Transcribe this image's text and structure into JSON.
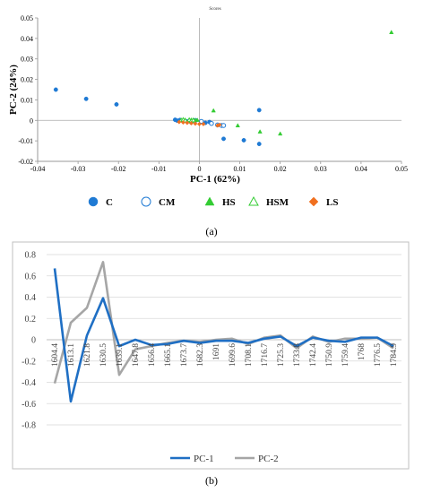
{
  "chart_data": [
    {
      "type": "scatter",
      "title": "Scores",
      "xlabel": "PC-1 (62%)",
      "ylabel": "PC-2 (24%)",
      "xlim": [
        -0.04,
        0.05
      ],
      "ylim": [
        -0.02,
        0.05
      ],
      "xticks": [
        "-0.04",
        "-0.03",
        "-0.02",
        "-0.01",
        "0",
        "0.01",
        "0.02",
        "0.03",
        "0.04",
        "0.05"
      ],
      "yticks": [
        "0.05",
        "0.04",
        "0.03",
        "0.02",
        "0.01",
        "0",
        "-0.01",
        "-0.02"
      ],
      "grid": false,
      "legend_position": "bottom",
      "series": [
        {
          "name": "C",
          "marker": "filled-circle",
          "color": "#1f7ad4",
          "points": [
            [
              -0.0355,
              0.015
            ],
            [
              -0.028,
              0.0105
            ],
            [
              -0.0205,
              0.0078
            ],
            [
              -0.006,
              0.0003
            ],
            [
              -0.0055,
              -0.0001
            ],
            [
              -0.0048,
              0.0002
            ],
            [
              -0.003,
              -0.0005
            ],
            [
              -0.002,
              -0.001
            ],
            [
              0.0015,
              -0.0012
            ],
            [
              0.0025,
              -0.0008
            ],
            [
              0.006,
              -0.009
            ],
            [
              0.011,
              -0.0097
            ],
            [
              0.0148,
              -0.0115
            ],
            [
              0.0148,
              0.005
            ]
          ]
        },
        {
          "name": "CM",
          "marker": "open-circle",
          "color": "#1f7ad4",
          "points": [
            [
              0.003,
              -0.0015
            ],
            [
              0.0045,
              -0.0022
            ],
            [
              0.0055,
              -0.0025
            ],
            [
              0.006,
              -0.0025
            ],
            [
              -0.001,
              0.0
            ],
            [
              0.0005,
              -0.0005
            ]
          ]
        },
        {
          "name": "HS",
          "marker": "filled-triangle",
          "color": "#33cc33",
          "points": [
            [
              0.0475,
              0.043
            ],
            [
              0.0035,
              0.0048
            ],
            [
              0.015,
              -0.0055
            ],
            [
              0.02,
              -0.0065
            ],
            [
              0.0095,
              -0.0025
            ],
            [
              -0.0035,
              0.0002
            ],
            [
              -0.002,
              0.0003
            ],
            [
              -0.001,
              0.0001
            ],
            [
              -0.0005,
              0.0002
            ]
          ]
        },
        {
          "name": "HSM",
          "marker": "open-triangle",
          "color": "#33cc33",
          "points": [
            [
              -0.0045,
              0.0
            ],
            [
              -0.004,
              0.0003
            ],
            [
              -0.0035,
              0.0
            ],
            [
              -0.0025,
              0.0002
            ],
            [
              -0.002,
              -0.0002
            ],
            [
              -0.0015,
              0.0001
            ]
          ]
        },
        {
          "name": "LS",
          "marker": "filled-diamond",
          "color": "#f07020",
          "points": [
            [
              -0.005,
              -0.0008
            ],
            [
              -0.004,
              -0.001
            ],
            [
              -0.003,
              -0.0012
            ],
            [
              -0.002,
              -0.0014
            ],
            [
              -0.001,
              -0.0016
            ],
            [
              0.0,
              -0.0018
            ],
            [
              0.001,
              -0.0018
            ],
            [
              0.0045,
              -0.0025
            ],
            [
              0.005,
              -0.0022
            ]
          ]
        }
      ]
    },
    {
      "type": "line",
      "title": "",
      "xlabel": "",
      "ylabel": "",
      "ylim": [
        -0.8,
        0.8
      ],
      "yticks": [
        "0.8",
        "0.6",
        "0.4",
        "0.2",
        "0",
        "-0.2",
        "-0.4",
        "-0.6",
        "-0.8"
      ],
      "grid": true,
      "legend_position": "bottom",
      "categories": [
        "1604.4",
        "1613.1",
        "1621.8",
        "1630.5",
        "1639.1",
        "1647.8",
        "1656.4",
        "1665.1",
        "1673.7",
        "1682.3",
        "1691",
        "1699.6",
        "1708.1",
        "1716.7",
        "1725.3",
        "1733.8",
        "1742.4",
        "1750.9",
        "1759.4",
        "1768",
        "1776.5",
        "1784.9"
      ],
      "series": [
        {
          "name": "PC-1",
          "color": "#1f6fc4",
          "values": [
            0.67,
            -0.58,
            0.04,
            0.39,
            -0.06,
            0.0,
            -0.05,
            -0.04,
            -0.01,
            -0.03,
            -0.01,
            -0.01,
            -0.03,
            0.01,
            0.03,
            -0.06,
            0.02,
            -0.01,
            -0.02,
            0.02,
            0.02,
            -0.06
          ]
        },
        {
          "name": "PC-2",
          "color": "#a6a6a6",
          "values": [
            -0.41,
            0.16,
            0.3,
            0.73,
            -0.33,
            -0.09,
            -0.06,
            -0.03,
            -0.01,
            -0.02,
            0.0,
            0.01,
            -0.04,
            0.02,
            0.04,
            -0.08,
            0.03,
            -0.02,
            0.01,
            0.01,
            0.02,
            -0.08
          ]
        }
      ]
    }
  ],
  "captions": {
    "a": "(a)",
    "b": "(b)"
  }
}
